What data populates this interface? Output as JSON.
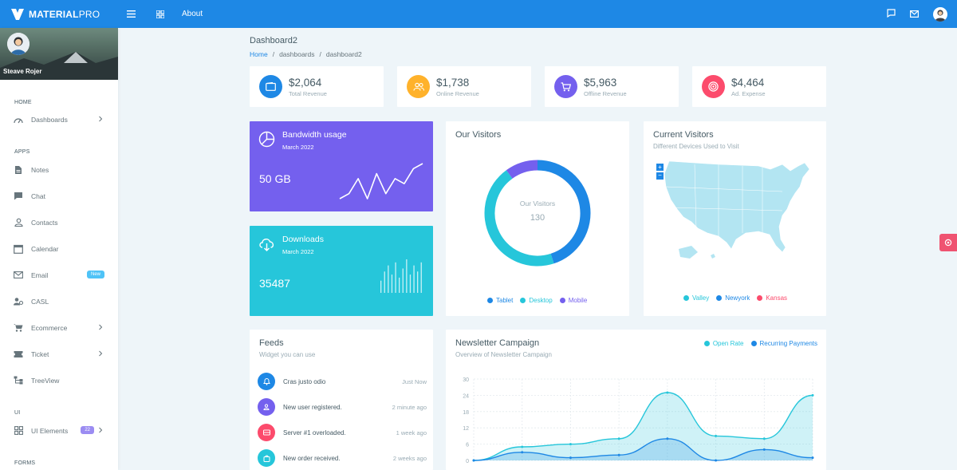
{
  "brand": {
    "bold": "MATERIAL",
    "thin": "PRO"
  },
  "topbar": {
    "about": "About"
  },
  "profile": {
    "name": "Steave Rojer"
  },
  "sidebar": {
    "sections": [
      {
        "caption": "HOME",
        "items": [
          {
            "label": "Dashboards",
            "icon": "dashboard-icon",
            "chevron": true
          }
        ]
      },
      {
        "caption": "APPS",
        "items": [
          {
            "label": "Notes",
            "icon": "notes-icon"
          },
          {
            "label": "Chat",
            "icon": "chat-icon"
          },
          {
            "label": "Contacts",
            "icon": "contacts-icon"
          },
          {
            "label": "Calendar",
            "icon": "calendar-icon"
          },
          {
            "label": "Email",
            "icon": "email-icon",
            "badge": "New"
          },
          {
            "label": "CASL",
            "icon": "casl-icon"
          },
          {
            "label": "Ecommerce",
            "icon": "cart-icon",
            "chevron": true
          },
          {
            "label": "Ticket",
            "icon": "ticket-icon",
            "chevron": true
          },
          {
            "label": "TreeView",
            "icon": "treeview-icon"
          }
        ]
      },
      {
        "caption": "UI",
        "items": [
          {
            "label": "UI Elements",
            "icon": "grid-icon",
            "badge": "22",
            "chevron": true
          }
        ]
      },
      {
        "caption": "FORMS",
        "items": []
      }
    ]
  },
  "page": {
    "title": "Dashboard2",
    "breadcrumbs": [
      "Home",
      "dashboards",
      "dashboard2"
    ]
  },
  "stats": [
    {
      "value": "$2,064",
      "label": "Total Revenue",
      "color": "#1e88e5",
      "icon": "wallet-icon"
    },
    {
      "value": "$1,738",
      "label": "Online Revenue",
      "color": "#ffb22b",
      "icon": "users-icon"
    },
    {
      "value": "$5,963",
      "label": "Offline Revenue",
      "color": "#7460ee",
      "icon": "cart-icon"
    },
    {
      "value": "$4,464",
      "label": "Ad. Expense",
      "color": "#fc4b6c",
      "icon": "target-icon"
    }
  ],
  "bandwidth": {
    "title": "Bandwidth usage",
    "subtitle": "March 2022",
    "value": "50 GB",
    "color": "#7460ee"
  },
  "downloads": {
    "title": "Downloads",
    "subtitle": "March 2022",
    "value": "35487",
    "color": "#26c6da"
  },
  "visitors": {
    "title": "Our Visitors",
    "center_label": "Our Visitors",
    "center_value": "130",
    "legend": [
      {
        "label": "Tablet",
        "color": "#1e88e5"
      },
      {
        "label": "Desktop",
        "color": "#26c6da"
      },
      {
        "label": "Mobile",
        "color": "#7460ee"
      }
    ]
  },
  "current_visitors": {
    "title": "Current Visitors",
    "subtitle": "Different Devices Used to Visit",
    "legend": [
      {
        "label": "Valley",
        "color": "#26c6da"
      },
      {
        "label": "Newyork",
        "color": "#1e88e5"
      },
      {
        "label": "Kansas",
        "color": "#fc4b6c"
      }
    ]
  },
  "feeds": {
    "title": "Feeds",
    "subtitle": "Widget you can use",
    "items": [
      {
        "text": "Cras justo odio",
        "time": "Just Now",
        "color": "#1e88e5",
        "icon": "bell-icon"
      },
      {
        "text": "New user registered.",
        "time": "2 minute ago",
        "color": "#7460ee",
        "icon": "user-icon"
      },
      {
        "text": "Server #1 overloaded.",
        "time": "1 week ago",
        "color": "#fc4b6c",
        "icon": "server-icon"
      },
      {
        "text": "New order received.",
        "time": "2 weeks ago",
        "color": "#26c6da",
        "icon": "bag-icon"
      }
    ]
  },
  "newsletter": {
    "title": "Newsletter Campaign",
    "subtitle": "Overview of Newsletter Campaign",
    "legend": [
      {
        "label": "Open Rate",
        "color": "#26c6da"
      },
      {
        "label": "Recurring Payments",
        "color": "#1e88e5"
      }
    ]
  },
  "chart_data": [
    {
      "type": "pie",
      "title": "Our Visitors",
      "categories": [
        "Tablet",
        "Desktop",
        "Mobile"
      ],
      "values": [
        45,
        45,
        10
      ],
      "center_text": "130"
    },
    {
      "type": "area",
      "title": "Newsletter Campaign",
      "ylim": [
        0,
        30
      ],
      "yticks": [
        0,
        6,
        12,
        18,
        24,
        30
      ],
      "x": [
        0,
        1,
        2,
        3,
        4,
        5,
        6,
        7
      ],
      "series": [
        {
          "name": "Open Rate",
          "color": "#26c6da",
          "values": [
            0,
            5,
            6,
            8,
            25,
            9,
            8,
            24
          ]
        },
        {
          "name": "Recurring Payments",
          "color": "#1e88e5",
          "values": [
            0,
            3,
            1,
            2,
            8,
            0,
            4,
            1
          ]
        }
      ]
    },
    {
      "type": "line",
      "title": "Bandwidth usage sparkline",
      "values": [
        0,
        1,
        4,
        0,
        5,
        1,
        4,
        3,
        6,
        7
      ]
    },
    {
      "type": "bar",
      "title": "Downloads sparkline",
      "values": [
        4,
        7,
        9,
        6,
        10,
        5,
        8,
        11,
        6,
        9,
        7,
        10
      ]
    }
  ]
}
